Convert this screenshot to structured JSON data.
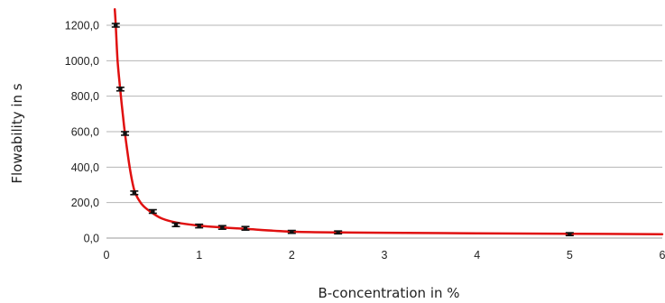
{
  "chart_data": {
    "type": "scatter",
    "title": "",
    "xlabel": "B-concentration in %",
    "ylabel": "Flowability in s",
    "xlim": [
      0,
      6
    ],
    "ylim": [
      0,
      1200
    ],
    "x_ticks": [
      0,
      1,
      2,
      3,
      4,
      5,
      6
    ],
    "x_tick_labels": [
      "0",
      "1",
      "2",
      "3",
      "4",
      "5",
      "6"
    ],
    "y_ticks": [
      0,
      200,
      400,
      600,
      800,
      1000,
      1200
    ],
    "y_tick_labels": [
      "0,0",
      "200,0",
      "400,0",
      "600,0",
      "800,0",
      "1000,0",
      "1200,0"
    ],
    "grid": "horizontal",
    "legend": "none",
    "series": [
      {
        "points": [
          {
            "x": 0.1,
            "y": 1200,
            "err": 10
          },
          {
            "x": 0.15,
            "y": 840,
            "err": 10
          },
          {
            "x": 0.2,
            "y": 590,
            "err": 10
          },
          {
            "x": 0.3,
            "y": 255,
            "err": 10
          },
          {
            "x": 0.5,
            "y": 150,
            "err": 10
          },
          {
            "x": 0.75,
            "y": 75,
            "err": 10
          },
          {
            "x": 1.0,
            "y": 68,
            "err": 10
          },
          {
            "x": 1.25,
            "y": 60,
            "err": 10
          },
          {
            "x": 1.5,
            "y": 55,
            "err": 10
          },
          {
            "x": 2.0,
            "y": 35,
            "err": 8
          },
          {
            "x": 2.5,
            "y": 32,
            "err": 8
          },
          {
            "x": 5.0,
            "y": 22,
            "err": 8
          }
        ]
      }
    ],
    "fit_curve": {
      "type": "line",
      "color": "#e01010",
      "points": [
        [
          0.09,
          1290
        ],
        [
          0.1,
          1200
        ],
        [
          0.12,
          1000
        ],
        [
          0.15,
          830
        ],
        [
          0.18,
          680
        ],
        [
          0.2,
          590
        ],
        [
          0.25,
          400
        ],
        [
          0.3,
          270
        ],
        [
          0.35,
          215
        ],
        [
          0.4,
          180
        ],
        [
          0.5,
          140
        ],
        [
          0.6,
          110
        ],
        [
          0.75,
          88
        ],
        [
          1.0,
          70
        ],
        [
          1.25,
          60
        ],
        [
          1.5,
          52
        ],
        [
          2.0,
          36
        ],
        [
          2.5,
          32
        ],
        [
          3.0,
          30
        ],
        [
          4.0,
          27
        ],
        [
          5.0,
          24
        ],
        [
          6.0,
          22
        ]
      ]
    },
    "colors": {
      "points": "#111111",
      "curve": "#e01010",
      "grid": "#b4b4b4"
    }
  }
}
